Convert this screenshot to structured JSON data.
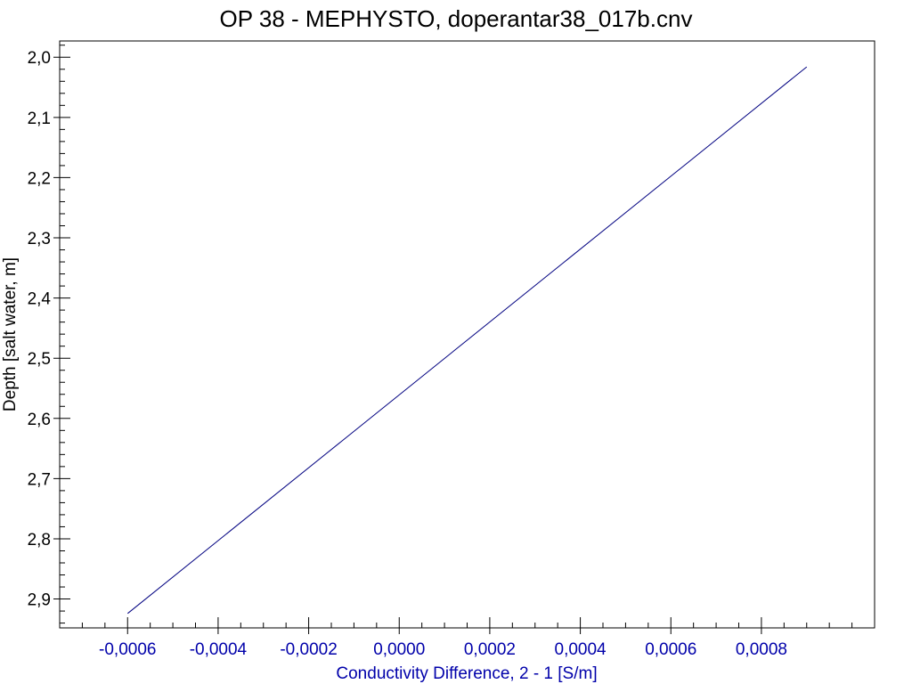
{
  "chart_data": {
    "type": "line",
    "title": "OP 38 - MEPHYSTO, doperantar38_017b.cnv",
    "xlabel": "Conductivity Difference, 2 - 1 [S/m]",
    "ylabel": "Depth [salt water, m]",
    "xlim": [
      -0.00075,
      0.00105
    ],
    "ylim": [
      1.973,
      2.948
    ],
    "y_inverted": true,
    "x_ticks": [
      -0.0006,
      -0.0004,
      -0.0002,
      0.0,
      0.0002,
      0.0004,
      0.0006,
      0.0008
    ],
    "x_tick_labels": [
      "-0,0006",
      "-0,0004",
      "-0,0002",
      "0,0000",
      "0,0002",
      "0,0004",
      "0,0006",
      "0,0008"
    ],
    "y_ticks": [
      2.0,
      2.1,
      2.2,
      2.3,
      2.4,
      2.5,
      2.6,
      2.7,
      2.8,
      2.9
    ],
    "y_tick_labels": [
      "2,0",
      "2,1",
      "2,2",
      "2,3",
      "2,4",
      "2,5",
      "2,6",
      "2,7",
      "2,8",
      "2,9"
    ],
    "grid": false,
    "series": [
      {
        "color": "#000080",
        "points": [
          [
            -0.0006,
            2.924
          ],
          [
            0.0009,
            2.016
          ]
        ]
      }
    ],
    "colors": {
      "x_axis": "#0000aa",
      "y_axis": "#000000",
      "frame": "#000000",
      "series": "#000080"
    }
  }
}
